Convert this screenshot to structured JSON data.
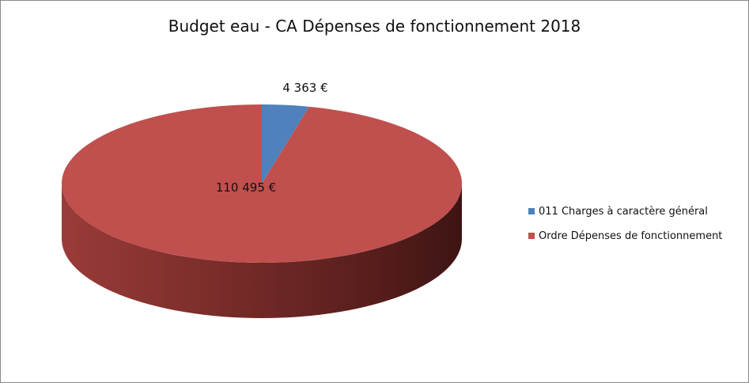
{
  "chart_data": {
    "type": "pie",
    "title": "Budget eau - CA Dépenses de fonctionnement 2018",
    "categories": [
      "011 Charges à caractère général",
      "Ordre Dépenses de fonctionnement"
    ],
    "values": [
      4363,
      110495
    ],
    "data_labels": [
      "4 363 €",
      "110 495 €"
    ],
    "colors": [
      "#4F81BD",
      "#C0504D"
    ],
    "style": "3d",
    "legend_position": "right"
  }
}
